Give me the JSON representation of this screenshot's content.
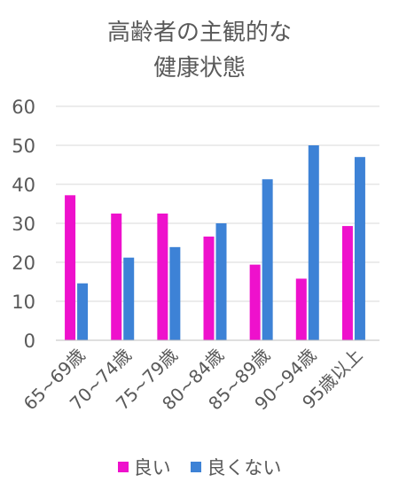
{
  "chart_data": {
    "type": "bar",
    "title_lines": [
      "高齢者の主観的な",
      "健康状態"
    ],
    "categories": [
      "65~69歳",
      "70~74歳",
      "75~79歳",
      "80~84歳",
      "85~89歳",
      "90~94歳",
      "95歳以上"
    ],
    "series": [
      {
        "name": "良い",
        "color": "#ee11cc",
        "values": [
          37.2,
          32.5,
          32.5,
          26.6,
          19.4,
          15.8,
          29.3
        ]
      },
      {
        "name": "良くない",
        "color": "#3d82d6",
        "values": [
          14.6,
          21.2,
          23.9,
          30.0,
          41.3,
          50.0,
          47.0
        ]
      }
    ],
    "yticks": [
      0,
      10,
      20,
      30,
      40,
      50,
      60
    ],
    "ylim": [
      0,
      60
    ],
    "grid": true,
    "legend_position": "bottom",
    "xlabel": "",
    "ylabel": ""
  }
}
